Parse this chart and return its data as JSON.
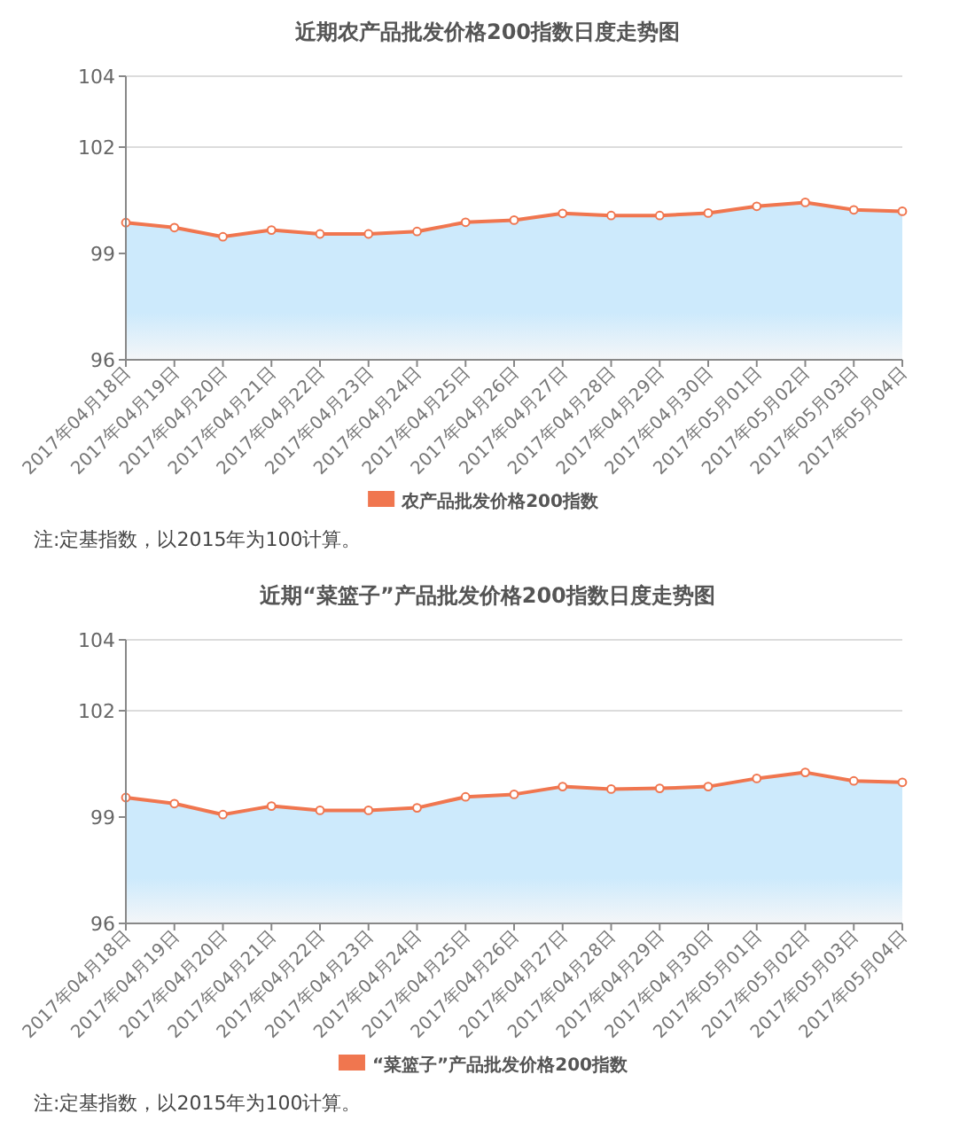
{
  "chart_data": [
    {
      "type": "area",
      "title": "近期农产品批发价格200指数日度走势图",
      "categories": [
        "2017年04月18日",
        "2017年04月19日",
        "2017年04月20日",
        "2017年04月21日",
        "2017年04月22日",
        "2017年04月23日",
        "2017年04月24日",
        "2017年04月25日",
        "2017年04月26日",
        "2017年04月27日",
        "2017年04月28日",
        "2017年04月29日",
        "2017年04月30日",
        "2017年05月01日",
        "2017年05月02日",
        "2017年05月03日",
        "2017年05月04日"
      ],
      "series": [
        {
          "name": "农产品批发价格200指数",
          "color": "#f0764f",
          "values": [
            99.87,
            99.73,
            99.47,
            99.66,
            99.55,
            99.55,
            99.62,
            99.88,
            99.94,
            100.13,
            100.07,
            100.07,
            100.14,
            100.33,
            100.44,
            100.23,
            100.19
          ]
        }
      ],
      "ylim": [
        96,
        104
      ],
      "yticks": [
        96,
        99,
        102,
        104
      ],
      "grid": "y",
      "legend": "bottom",
      "marker": "circle",
      "annotations": [
        "注:定基指数，以2015年为100计算。"
      ]
    },
    {
      "type": "area",
      "title": "近期“菜篮子”产品批发价格200指数日度走势图",
      "categories": [
        "2017年04月18日",
        "2017年04月19日",
        "2017年04月20日",
        "2017年04月21日",
        "2017年04月22日",
        "2017年04月23日",
        "2017年04月24日",
        "2017年04月25日",
        "2017年04月26日",
        "2017年04月27日",
        "2017年04月28日",
        "2017年04月29日",
        "2017年04月30日",
        "2017年05月01日",
        "2017年05月02日",
        "2017年05月03日",
        "2017年05月04日"
      ],
      "series": [
        {
          "name": "“菜篮子”产品批发价格200指数",
          "color": "#f0764f",
          "values": [
            99.55,
            99.38,
            99.07,
            99.31,
            99.19,
            99.19,
            99.26,
            99.57,
            99.64,
            99.86,
            99.79,
            99.81,
            99.86,
            100.09,
            100.26,
            100.02,
            99.98
          ]
        }
      ],
      "ylim": [
        96,
        104
      ],
      "yticks": [
        96,
        99,
        102,
        104
      ],
      "grid": "y",
      "legend": "bottom",
      "marker": "circle",
      "annotations": [
        "注:定基指数，以2015年为100计算。"
      ]
    }
  ]
}
